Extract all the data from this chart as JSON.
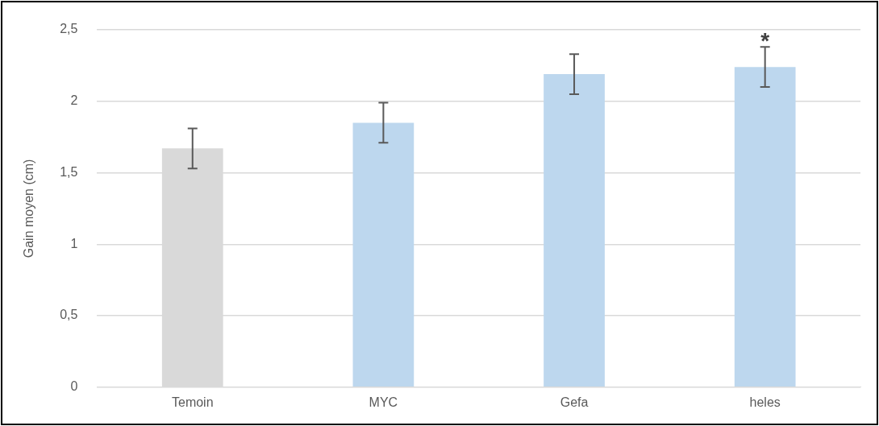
{
  "chart_data": {
    "type": "bar",
    "ylabel": "Gain moyen (cm)",
    "categories": [
      "Temoin",
      "MYC",
      "Gefa",
      "heles"
    ],
    "values": [
      1.67,
      1.85,
      2.19,
      2.24
    ],
    "colors": [
      "#d9d9d9",
      "#bdd7ee",
      "#bdd7ee",
      "#bdd7ee"
    ],
    "errors": [
      0.14,
      0.14,
      0.14,
      0.14
    ],
    "ylim": [
      0,
      2.5
    ],
    "yticks": [
      0,
      {
        "value": 0.5,
        "label": "0,5"
      },
      1,
      {
        "value": 1.5,
        "label": "1,5"
      },
      2,
      {
        "value": 2.5,
        "label": "2,5"
      }
    ],
    "grid": "y",
    "legend": false,
    "annotations": [
      {
        "text": "*",
        "x": "heles",
        "y": 2.38
      }
    ]
  }
}
